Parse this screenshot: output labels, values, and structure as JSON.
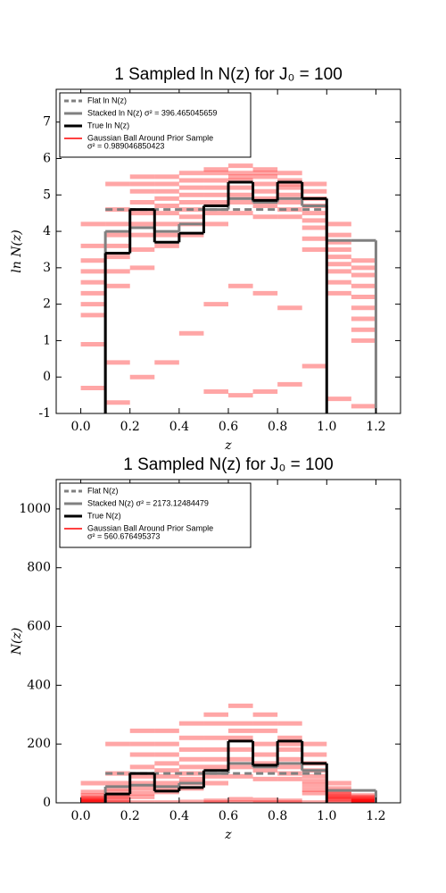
{
  "chart_data": [
    {
      "type": "step",
      "title": "1 Sampled ln N(z) for J₀ = 100",
      "xlabel": "z",
      "ylabel": "ln N(z)",
      "xlim": [
        -0.1,
        1.3
      ],
      "ylim": [
        -1,
        7.9
      ],
      "xticks": [
        {
          "value": 0,
          "label": "0.0"
        },
        0.2,
        0.4,
        0.6,
        0.8,
        {
          "value": 1,
          "label": "1.0"
        },
        1.2
      ],
      "yticks": [
        -1,
        0,
        1,
        2,
        3,
        4,
        5,
        6,
        7
      ],
      "legend": "upper left",
      "series": [
        {
          "name": "Flat ln N(z)",
          "color": "#808080",
          "style": "dashed",
          "bins": [
            0.1,
            1.0
          ],
          "values": [
            4.6
          ]
        },
        {
          "name": "Stacked ln N(z) σ² = 396.465045659",
          "color": "#808080",
          "style": "solid",
          "bins": [
            0.1,
            0.2,
            0.3,
            0.4,
            0.5,
            0.6,
            0.7,
            0.8,
            0.9,
            1.0,
            1.1,
            1.2
          ],
          "values": [
            4.0,
            4.1,
            4.0,
            4.2,
            4.6,
            4.9,
            4.8,
            4.9,
            4.7,
            3.75,
            3.75
          ]
        },
        {
          "name": "True ln N(z)",
          "color": "#000000",
          "style": "solid",
          "bins": [
            0.1,
            0.2,
            0.3,
            0.4,
            0.5,
            0.6,
            0.7,
            0.8,
            0.9,
            1.0
          ],
          "values": [
            3.4,
            4.6,
            3.7,
            3.95,
            4.7,
            5.35,
            4.85,
            5.35,
            4.9
          ]
        },
        {
          "name": "Gaussian Ball Around Prior Sample",
          "sigma": "σ² = 0.989046850423",
          "color": "#ff0000",
          "style": "samples",
          "bins": [
            0,
            0.1,
            0.2,
            0.3,
            0.4,
            0.5,
            0.6,
            0.7,
            0.8,
            0.9,
            1.0,
            1.1,
            1.2
          ],
          "samples": [
            [
              -0.3,
              0.9,
              1.7,
              2.0,
              2.3,
              2.6,
              2.9,
              3.2,
              3.6,
              4.2
            ],
            [
              -0.7,
              0.4,
              2.5,
              2.9,
              3.3,
              3.6,
              3.9,
              4.2,
              4.6,
              5.3
            ],
            [
              0.0,
              3.0,
              3.5,
              3.9,
              4.2,
              4.5,
              4.8,
              5.1,
              5.3,
              5.5
            ],
            [
              0.4,
              3.6,
              3.9,
              4.2,
              4.5,
              4.7,
              4.9,
              5.1,
              5.3,
              5.5
            ],
            [
              1.2,
              3.9,
              4.2,
              4.4,
              4.6,
              4.8,
              5.0,
              5.2,
              5.4,
              5.6
            ],
            [
              -0.4,
              2.0,
              4.2,
              4.5,
              4.8,
              5.0,
              5.2,
              5.4,
              5.6,
              5.7
            ],
            [
              -0.5,
              2.5,
              4.5,
              4.8,
              5.0,
              5.2,
              5.4,
              5.5,
              5.6,
              5.8
            ],
            [
              -0.4,
              2.3,
              4.4,
              4.7,
              4.9,
              5.1,
              5.3,
              5.5,
              5.6,
              5.7
            ],
            [
              -0.2,
              1.9,
              4.4,
              4.6,
              4.8,
              5.0,
              5.2,
              5.3,
              5.4,
              5.6
            ],
            [
              0.3,
              3.5,
              3.8,
              4.1,
              4.3,
              4.5,
              4.7,
              4.9,
              5.1,
              5.3
            ],
            [
              -0.6,
              2.3,
              2.6,
              2.9,
              3.1,
              3.3,
              3.5,
              3.7,
              3.9,
              4.2
            ],
            [
              -0.8,
              1.0,
              1.3,
              1.6,
              1.9,
              2.2,
              2.5,
              2.8,
              3.0,
              3.2
            ]
          ]
        }
      ]
    },
    {
      "type": "step",
      "title": "1 Sampled N(z) for J₀ = 100",
      "xlabel": "z",
      "ylabel": "N(z)",
      "xlim": [
        -0.1,
        1.3
      ],
      "ylim": [
        0,
        1100
      ],
      "xticks": [
        {
          "value": 0,
          "label": "0.0"
        },
        0.2,
        0.4,
        0.6,
        0.8,
        {
          "value": 1,
          "label": "1.0"
        },
        1.2
      ],
      "yticks": [
        0,
        200,
        400,
        600,
        800,
        1000
      ],
      "legend": "upper left",
      "series": [
        {
          "name": "Flat N(z)",
          "color": "#808080",
          "style": "dashed",
          "bins": [
            0.1,
            1.0
          ],
          "values": [
            100
          ]
        },
        {
          "name": "Stacked N(z) σ² = 2173.12484479",
          "color": "#808080",
          "style": "solid",
          "bins": [
            0.1,
            0.2,
            0.3,
            0.4,
            0.5,
            0.6,
            0.7,
            0.8,
            0.9,
            1.0,
            1.1,
            1.2
          ],
          "values": [
            55,
            60,
            55,
            67,
            100,
            134,
            122,
            134,
            110,
            42,
            42
          ]
        },
        {
          "name": "True N(z)",
          "color": "#000000",
          "style": "solid",
          "bins": [
            0.1,
            0.2,
            0.3,
            0.4,
            0.5,
            0.6,
            0.7,
            0.8,
            0.9,
            1.0
          ],
          "values": [
            30,
            100,
            40,
            52,
            110,
            210,
            128,
            210,
            134
          ]
        },
        {
          "name": "Gaussian Ball Around Prior Sample",
          "sigma": "σ² = 560.676495373",
          "color": "#ff0000",
          "style": "samples",
          "bins": [
            0,
            0.1,
            0.2,
            0.3,
            0.4,
            0.5,
            0.6,
            0.7,
            0.8,
            0.9,
            1.0,
            1.1,
            1.2
          ],
          "samples": [
            [
              1,
              2,
              5,
              7,
              10,
              13,
              18,
              25,
              37,
              67
            ],
            [
              0,
              1,
              12,
              18,
              27,
              37,
              49,
              67,
              100,
              200
            ],
            [
              1,
              20,
              33,
              49,
              67,
              90,
              122,
              164,
              200,
              245
            ],
            [
              1,
              37,
              49,
              67,
              90,
              110,
              134,
              164,
              200,
              245
            ],
            [
              3,
              49,
              67,
              81,
              100,
              122,
              148,
              181,
              221,
              270
            ],
            [
              1,
              7,
              67,
              90,
              122,
              148,
              181,
              221,
              270,
              300
            ],
            [
              1,
              12,
              90,
              122,
              148,
              181,
              221,
              245,
              270,
              330
            ],
            [
              1,
              10,
              81,
              110,
              134,
              164,
              200,
              245,
              270,
              300
            ],
            [
              1,
              7,
              81,
              100,
              122,
              148,
              181,
              200,
              221,
              270
            ],
            [
              1,
              33,
              45,
              60,
              74,
              90,
              110,
              134,
              164,
              200
            ],
            [
              1,
              10,
              13,
              18,
              22,
              27,
              33,
              40,
              49,
              67
            ],
            [
              0,
              3,
              4,
              5,
              7,
              9,
              12,
              16,
              20,
              25
            ]
          ]
        }
      ]
    }
  ]
}
